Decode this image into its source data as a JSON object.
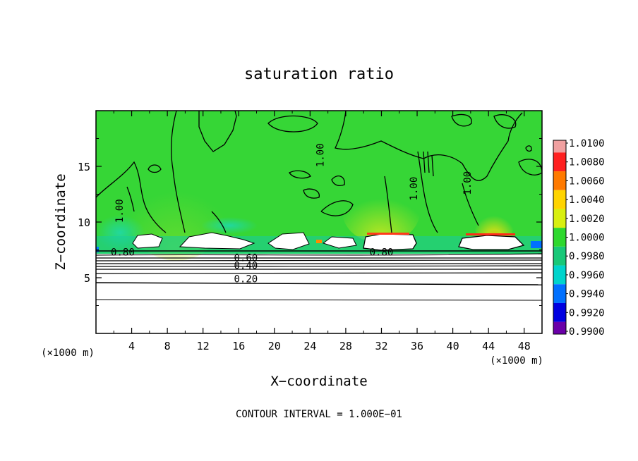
{
  "chart_data": {
    "type": "heatmap",
    "title": "saturation ratio",
    "xlabel": "X−coordinate",
    "ylabel": "Z−coordinate",
    "x_unit": "(×1000 m)",
    "z_unit": "(×1000 m)",
    "xlim": [
      0,
      50
    ],
    "ylim": [
      0,
      20
    ],
    "xticks": [
      4,
      8,
      12,
      16,
      20,
      24,
      28,
      32,
      36,
      40,
      44,
      48
    ],
    "yticks": [
      5,
      10,
      15
    ],
    "grid": false,
    "footer": "CONTOUR INTERVAL = 1.000E−01",
    "colorbar": {
      "levels": [
        "1.0100",
        "1.0080",
        "1.0060",
        "1.0040",
        "1.0020",
        "1.0000",
        "0.9980",
        "0.9960",
        "0.9940",
        "0.9920",
        "0.9900"
      ],
      "colors": [
        "#f0a0a0",
        "#ff2020",
        "#ff7a00",
        "#ffd400",
        "#d8ef10",
        "#2ed82e",
        "#18c878",
        "#00d4cc",
        "#0070ff",
        "#0000e0",
        "#6a00a8"
      ]
    },
    "contour_labels": [
      {
        "text": "0.20",
        "x": 16.8,
        "z": 4.6
      },
      {
        "text": "0.40",
        "x": 16.8,
        "z": 5.8
      },
      {
        "text": "0.60",
        "x": 16.8,
        "z": 6.5
      },
      {
        "text": "0.80",
        "x": 3.0,
        "z": 7.0
      },
      {
        "text": "0.80",
        "x": 32.0,
        "z": 7.0
      },
      {
        "text": "1.00",
        "x": 3.0,
        "z": 11.0
      },
      {
        "text": "1.00",
        "x": 25.5,
        "z": 16.0
      },
      {
        "text": "1.00",
        "x": 36.0,
        "z": 13.0
      },
      {
        "text": "1.00",
        "x": 42.0,
        "z": 13.5
      }
    ]
  }
}
